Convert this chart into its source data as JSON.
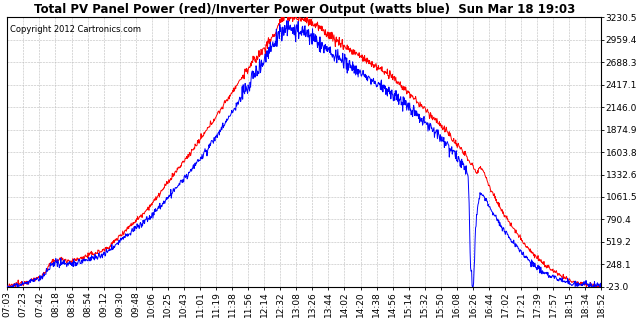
{
  "title": "Total PV Panel Power (red)/Inverter Power Output (watts blue)  Sun Mar 18 19:03",
  "copyright": "Copyright 2012 Cartronics.com",
  "yticks": [
    3230.5,
    2959.4,
    2688.3,
    2417.1,
    2146.0,
    1874.9,
    1603.8,
    1332.6,
    1061.5,
    790.4,
    519.2,
    248.1,
    -23.0
  ],
  "xtick_labels": [
    "07:03",
    "07:23",
    "07:42",
    "08:18",
    "08:36",
    "08:54",
    "09:12",
    "09:30",
    "09:48",
    "10:06",
    "10:25",
    "10:43",
    "11:01",
    "11:19",
    "11:38",
    "11:56",
    "12:14",
    "12:32",
    "13:08",
    "13:26",
    "13:44",
    "14:02",
    "14:20",
    "14:38",
    "14:56",
    "15:14",
    "15:32",
    "15:50",
    "16:08",
    "16:26",
    "16:44",
    "17:02",
    "17:21",
    "17:39",
    "17:57",
    "18:15",
    "18:34",
    "18:52"
  ],
  "ymin": -23.0,
  "ymax": 3230.5,
  "bg_color": "#ffffff",
  "plot_bg": "#ffffff",
  "grid_color": "#bbbbbb",
  "red_color": "#ff0000",
  "blue_color": "#0000ff",
  "title_fontsize": 8.5,
  "tick_fontsize": 6.5,
  "copyright_fontsize": 6.0
}
